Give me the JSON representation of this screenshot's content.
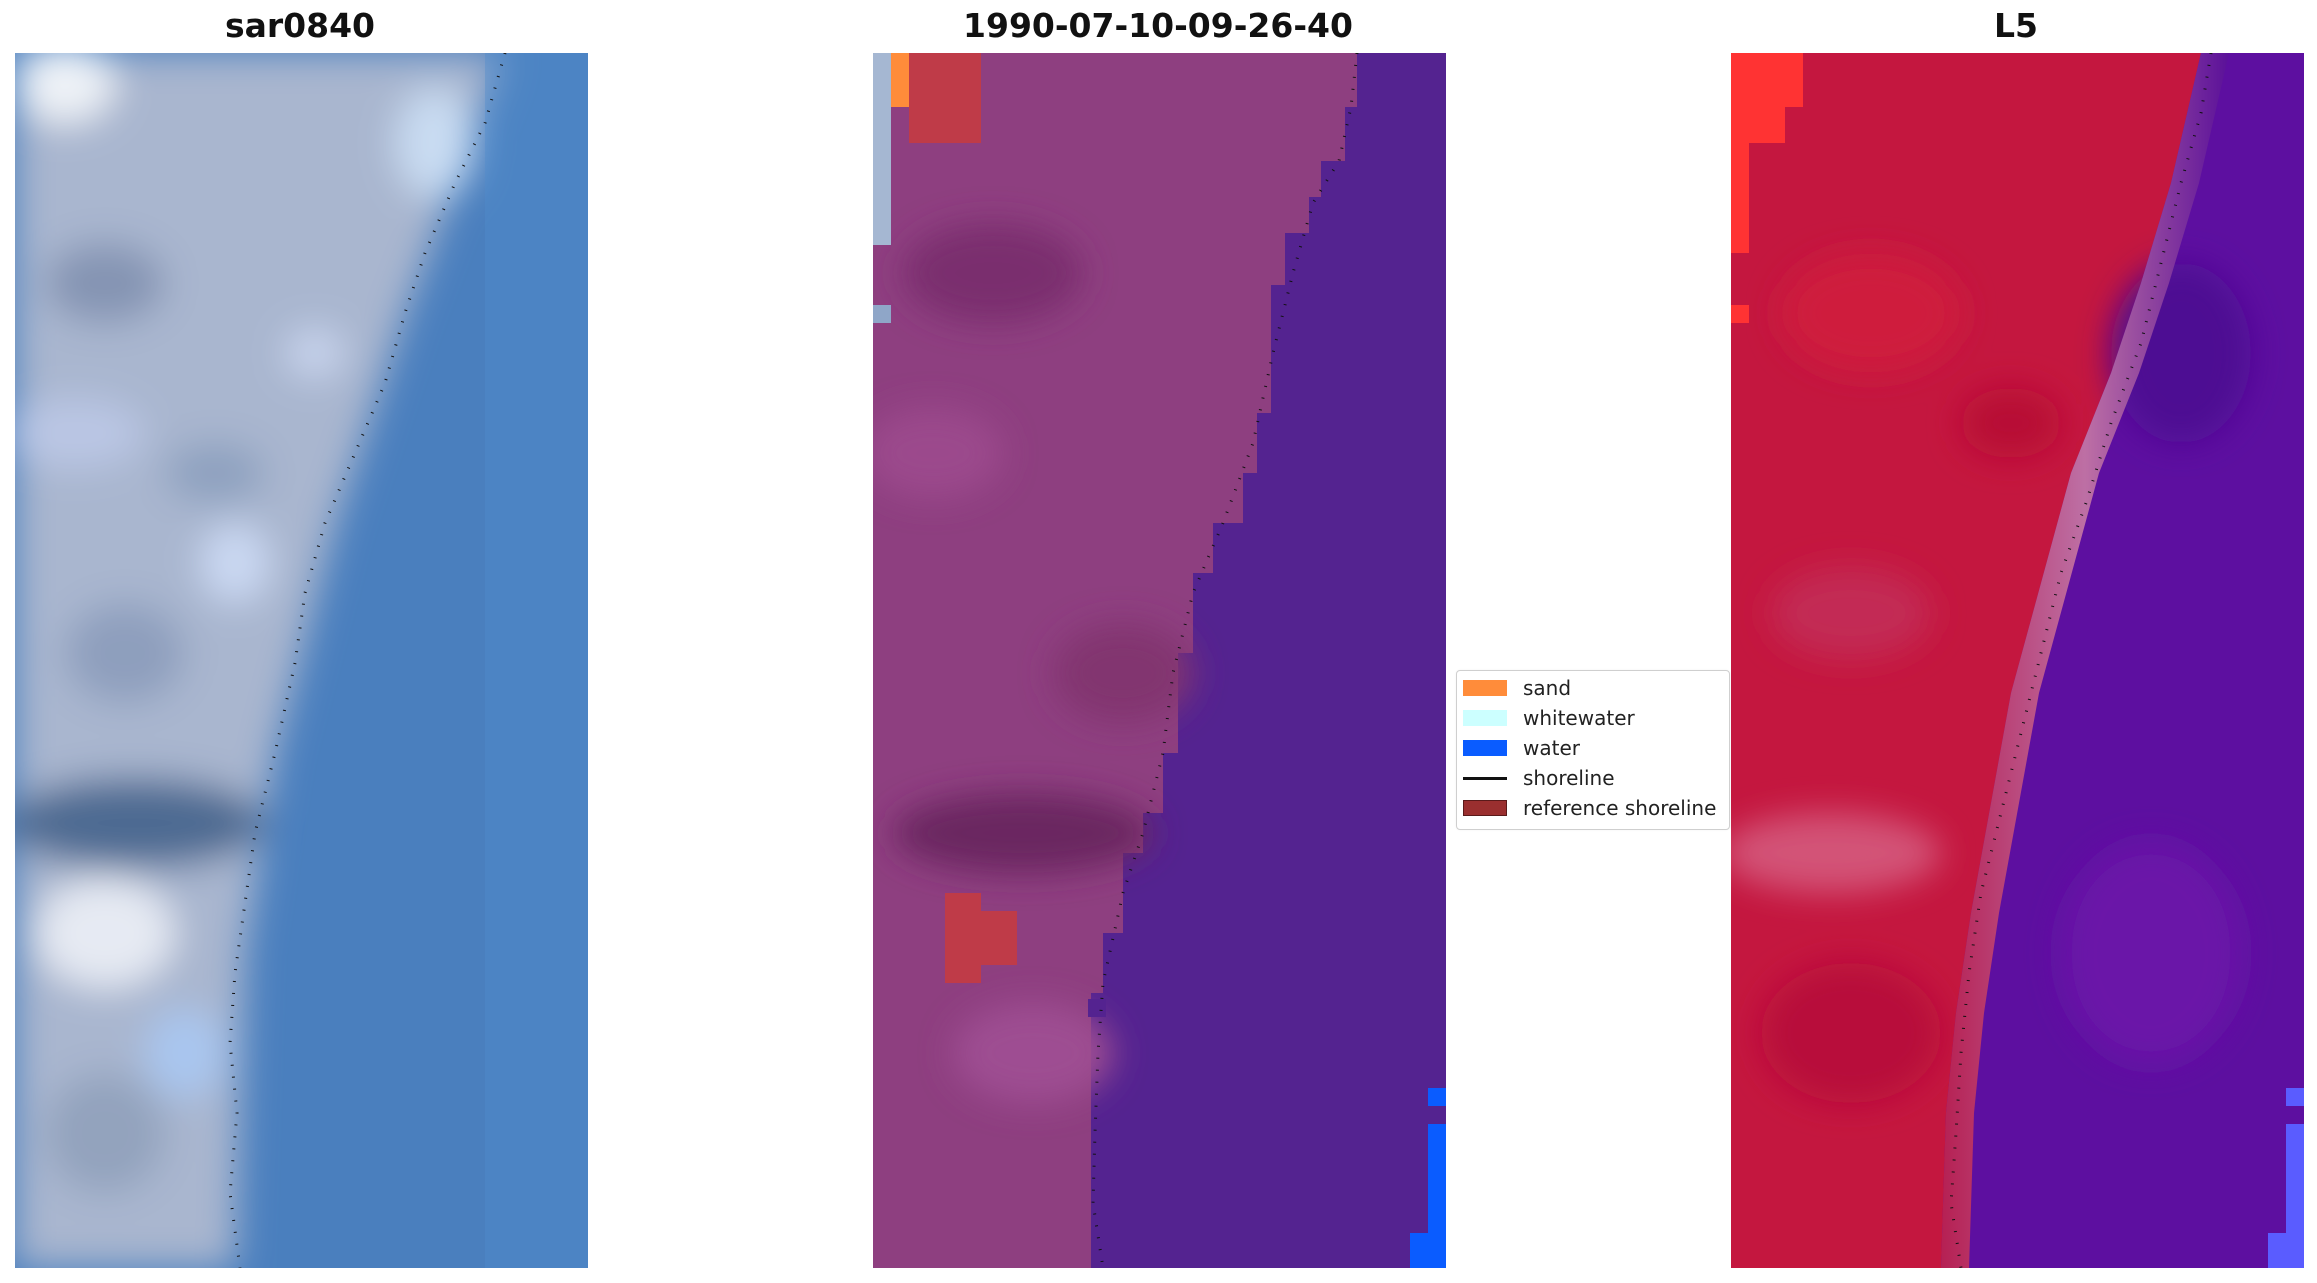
{
  "panels": [
    {
      "title": "sar0840"
    },
    {
      "title": "1990-07-10-09-26-40"
    },
    {
      "title": "L5"
    }
  ],
  "legend": {
    "items": [
      {
        "label": "sand",
        "color": "#ff8c3a",
        "kind": "patch"
      },
      {
        "label": "whitewater",
        "color": "#ccffff",
        "kind": "patch"
      },
      {
        "label": "water",
        "color": "#0a5cff",
        "kind": "patch"
      },
      {
        "label": "shoreline",
        "color": "#111111",
        "kind": "line"
      },
      {
        "label": "reference shoreline",
        "color": "#9a2f2f",
        "kind": "patch"
      }
    ]
  }
}
